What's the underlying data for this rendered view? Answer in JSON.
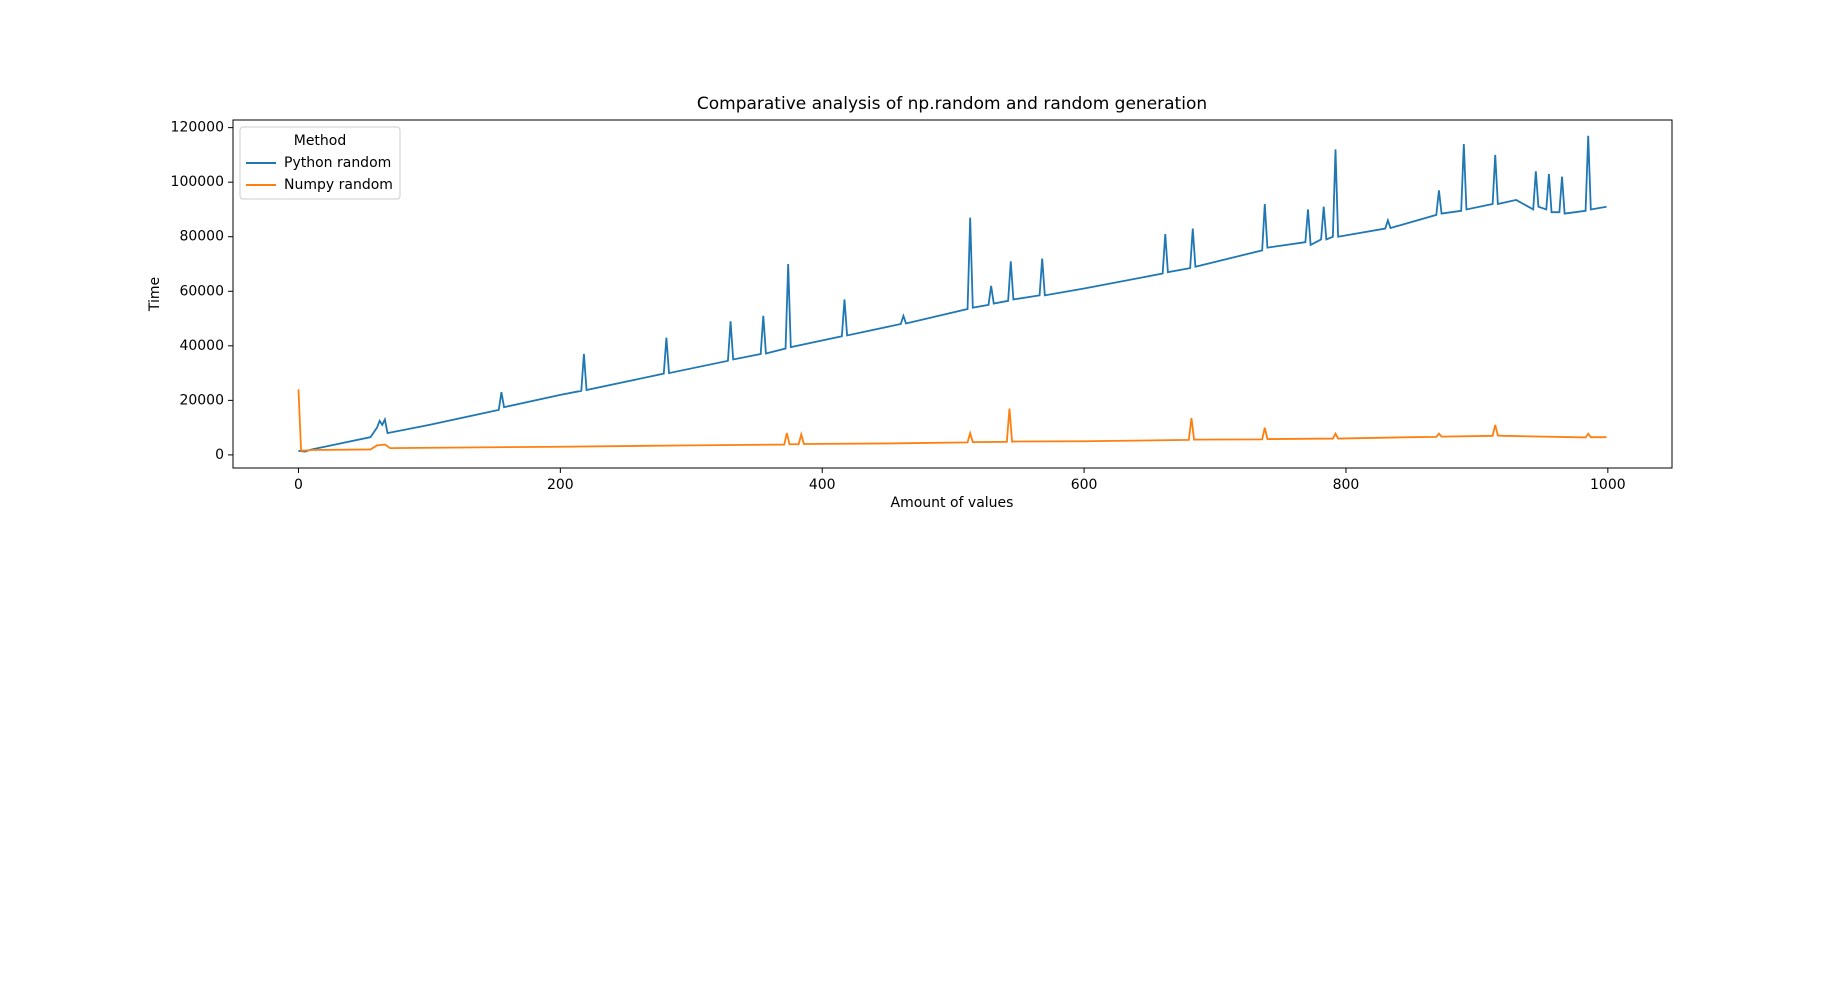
{
  "chart_data": {
    "type": "line",
    "title": "Comparative analysis of np.random and random generation",
    "xlabel": "Amount of values",
    "ylabel": "Time",
    "legend_title": "Method",
    "legend": "upper left",
    "xlim": [
      -50,
      1049
    ],
    "ylim": [
      -4800,
      122800
    ],
    "xticks": [
      0,
      200,
      400,
      600,
      800,
      1000
    ],
    "yticks": [
      0,
      20000,
      40000,
      60000,
      80000,
      100000,
      120000
    ],
    "series": [
      {
        "name": "Python random",
        "color": "#1f77b4",
        "x": [
          0,
          5,
          10,
          30,
          55,
          60,
          62,
          64,
          66,
          68,
          100,
          153,
          155,
          157,
          200,
          216,
          218,
          220,
          279,
          281,
          283,
          328,
          330,
          332,
          353,
          355,
          357,
          372,
          374,
          376,
          415,
          417,
          419,
          460,
          462,
          464,
          511,
          513,
          515,
          527,
          529,
          531,
          542,
          544,
          546,
          566,
          568,
          570,
          600,
          660,
          662,
          664,
          681,
          683,
          685,
          736,
          738,
          740,
          769,
          771,
          773,
          781,
          783,
          785,
          790,
          792,
          794,
          830,
          832,
          834,
          869,
          871,
          873,
          888,
          890,
          892,
          912,
          914,
          916,
          930,
          943,
          945,
          947,
          953,
          955,
          957,
          963,
          965,
          967,
          983,
          985,
          987,
          999
        ],
        "values": [
          1500,
          1200,
          2000,
          4000,
          6500,
          10000,
          12500,
          11000,
          13000,
          8000,
          11000,
          16500,
          23000,
          17500,
          22000,
          23500,
          37000,
          23800,
          29800,
          43000,
          30000,
          34500,
          49000,
          35000,
          37000,
          51000,
          37200,
          39000,
          70000,
          39500,
          43500,
          57000,
          43800,
          48000,
          51000,
          48200,
          53500,
          87000,
          54000,
          55000,
          62000,
          55500,
          56500,
          71000,
          57000,
          58500,
          72000,
          58500,
          61000,
          66500,
          81000,
          67000,
          68500,
          83000,
          69000,
          75000,
          92000,
          76000,
          78000,
          90000,
          77000,
          79000,
          91000,
          79000,
          80000,
          112000,
          80000,
          83000,
          86000,
          83200,
          88000,
          97000,
          88500,
          89500,
          114000,
          90000,
          92000,
          110000,
          92000,
          93500,
          90000,
          104000,
          91000,
          90000,
          103000,
          89000,
          89000,
          102000,
          88500,
          89500,
          117000,
          90000,
          91000
        ]
      },
      {
        "name": "Numpy random",
        "color": "#ff7f0e",
        "x": [
          0,
          2,
          10,
          55,
          60,
          66,
          70,
          200,
          300,
          371,
          373,
          375,
          382,
          384,
          386,
          450,
          511,
          513,
          515,
          541,
          543,
          545,
          600,
          680,
          682,
          684,
          736,
          738,
          740,
          790,
          792,
          794,
          850,
          869,
          871,
          873,
          912,
          914,
          916,
          920,
          983,
          985,
          987,
          999
        ],
        "values": [
          24000,
          1500,
          1800,
          2000,
          3500,
          3800,
          2500,
          3000,
          3500,
          3800,
          8000,
          3900,
          3900,
          7500,
          4000,
          4200,
          4600,
          8000,
          4700,
          4800,
          17000,
          4900,
          5000,
          5500,
          13500,
          5600,
          5700,
          10000,
          5800,
          6000,
          7800,
          6000,
          6500,
          6600,
          7800,
          6700,
          7000,
          11000,
          7100,
          7000,
          6400,
          7800,
          6500,
          6500
        ]
      }
    ]
  }
}
